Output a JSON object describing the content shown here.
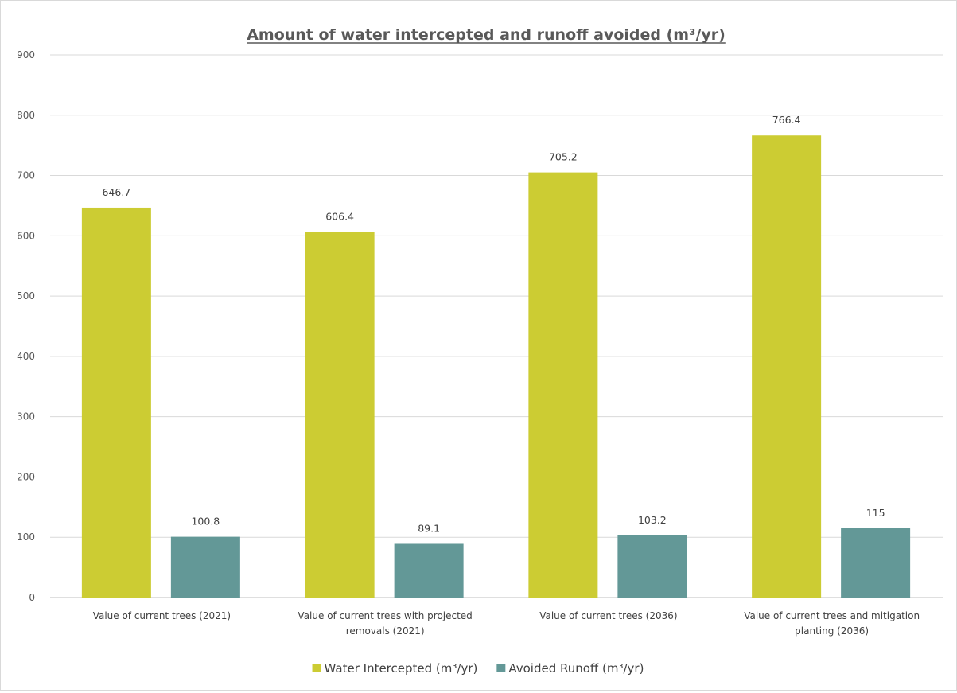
{
  "chart_data": {
    "type": "bar",
    "title": "Amount of water intercepted and runoff avoided (m³/yr)",
    "xlabel": "",
    "ylabel": "",
    "ylim": [
      0,
      900
    ],
    "yticks": [
      0,
      100,
      200,
      300,
      400,
      500,
      600,
      700,
      800,
      900
    ],
    "grid": true,
    "legend_position": "bottom",
    "categories": [
      [
        "Value of current trees (2021)"
      ],
      [
        "Value of current trees with projected",
        "removals (2021)"
      ],
      [
        "Value of current trees (2036)"
      ],
      [
        "Value of current trees and mitigation",
        "planting (2036)"
      ]
    ],
    "series": [
      {
        "name": "Water Intercepted (m³/yr)",
        "color": "#cccc33",
        "values": [
          646.7,
          606.4,
          705.2,
          766.4
        ],
        "labels": [
          "646.7",
          "606.4",
          "705.2",
          "766.4"
        ]
      },
      {
        "name": "Avoided Runoff (m³/yr)",
        "color": "#639897",
        "values": [
          100.8,
          89.1,
          103.2,
          115
        ],
        "labels": [
          "100.8",
          "89.1",
          "103.2",
          "115"
        ]
      }
    ]
  }
}
